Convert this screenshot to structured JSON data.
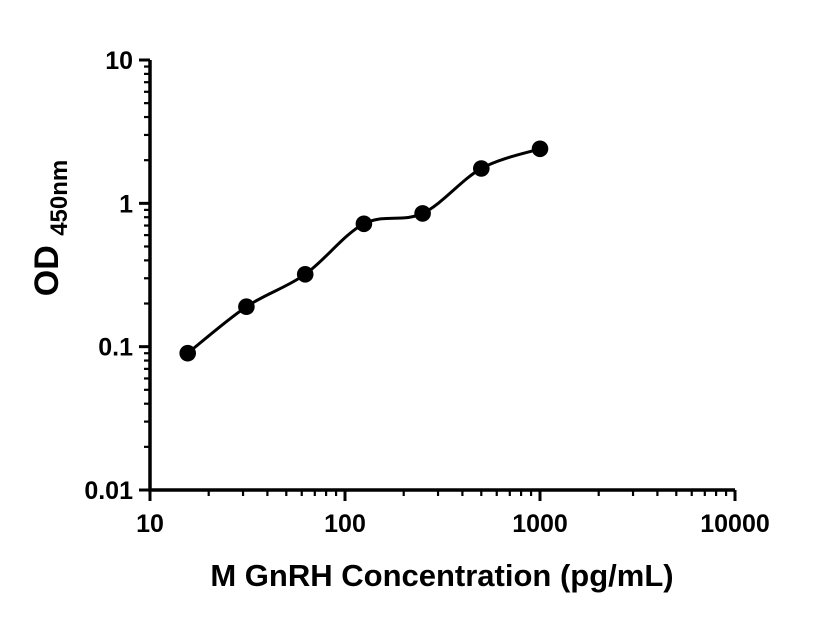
{
  "chart_data": {
    "type": "scatter",
    "title": "",
    "xlabel": "M GnRH Concentration (pg/mL)",
    "ylabel": "OD",
    "ylabel_subscript": "450nm",
    "x_scale": "log10",
    "y_scale": "log10",
    "xlim": [
      10,
      10000
    ],
    "ylim": [
      0.01,
      10
    ],
    "x_ticks": [
      10,
      100,
      1000,
      10000
    ],
    "x_tick_labels": [
      "10",
      "100",
      "1000",
      "10000"
    ],
    "y_ticks": [
      0.01,
      0.1,
      1,
      10
    ],
    "y_tick_labels": [
      "0.01",
      "0.1",
      "1",
      "10"
    ],
    "grid": false,
    "legend": "none",
    "colors": {
      "axis": "#000000",
      "marker": "#000000",
      "curve": "#000000",
      "background": "#ffffff"
    },
    "series": [
      {
        "marker": "filled-circle",
        "line": "smooth-fit-curve",
        "points": [
          {
            "x": 15.6,
            "y": 0.09
          },
          {
            "x": 31.2,
            "y": 0.19
          },
          {
            "x": 62.5,
            "y": 0.32
          },
          {
            "x": 125,
            "y": 0.72
          },
          {
            "x": 250,
            "y": 0.85
          },
          {
            "x": 500,
            "y": 1.75
          },
          {
            "x": 1000,
            "y": 2.4
          }
        ]
      }
    ]
  }
}
